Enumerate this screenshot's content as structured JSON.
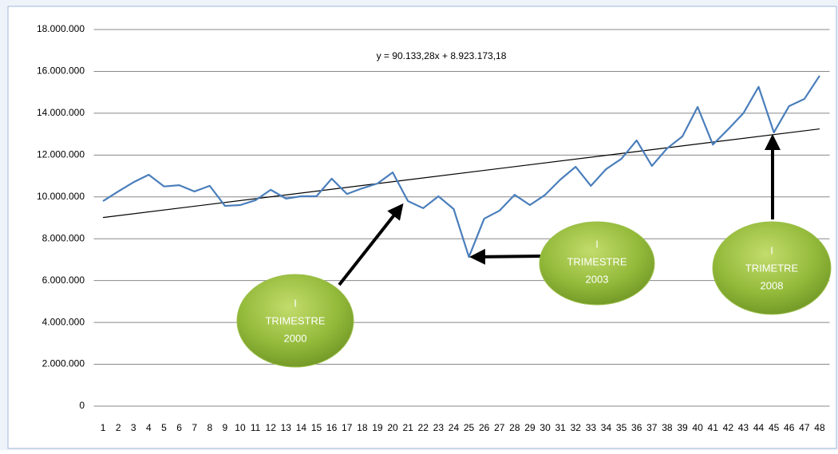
{
  "chart_data": {
    "type": "line",
    "categories": [
      "1",
      "2",
      "3",
      "4",
      "5",
      "6",
      "7",
      "8",
      "9",
      "10",
      "11",
      "12",
      "13",
      "14",
      "15",
      "16",
      "17",
      "18",
      "19",
      "20",
      "21",
      "22",
      "23",
      "24",
      "25",
      "26",
      "27",
      "28",
      "29",
      "30",
      "31",
      "32",
      "33",
      "34",
      "35",
      "36",
      "37",
      "38",
      "39",
      "40",
      "41",
      "42",
      "43",
      "44",
      "45",
      "46",
      "47",
      "48"
    ],
    "series": [
      {
        "color": "#4a7ebb",
        "values": [
          9800000,
          10260000,
          10700000,
          11060000,
          10500000,
          10560000,
          10260000,
          10530000,
          9570000,
          9610000,
          9840000,
          10340000,
          9920000,
          10030000,
          10030000,
          10870000,
          10140000,
          10410000,
          10640000,
          11170000,
          9800000,
          9460000,
          10030000,
          9420000,
          7130000,
          8960000,
          9340000,
          10100000,
          9610000,
          10100000,
          10830000,
          11440000,
          10530000,
          11330000,
          11820000,
          12700000,
          11480000,
          12320000,
          12890000,
          14300000,
          12500000,
          13230000,
          14000000,
          15260000,
          13080000,
          14340000,
          14680000,
          15790000
        ]
      }
    ],
    "trendline": {
      "slope": 90133.28,
      "intercept": 8923173.18,
      "label": "y = 90.133,28x + 8.923.173,18",
      "color": "#000000"
    },
    "ylim": [
      0,
      18000000
    ],
    "yticks": [
      0,
      {
        "value": 2000000,
        "label": "2.000.000"
      },
      {
        "value": 4000000,
        "label": "4.000.000"
      },
      {
        "value": 6000000,
        "label": "6.000.000"
      },
      {
        "value": 8000000,
        "label": "8.000.000"
      },
      {
        "value": 10000000,
        "label": "10.000.000"
      },
      {
        "value": 12000000,
        "label": "12.000.000"
      },
      {
        "value": 14000000,
        "label": "14.000.000"
      },
      {
        "value": 16000000,
        "label": "16.000.000"
      },
      {
        "value": 18000000,
        "label": "18.000.000"
      }
    ],
    "grid": true,
    "annotations": [
      {
        "lines": [
          "I",
          "TRIMESTRE",
          "2000"
        ]
      },
      {
        "lines": [
          "I",
          "TRIMESTRE",
          "2003"
        ]
      },
      {
        "lines": [
          "I",
          "TRIMETRE",
          "2008"
        ]
      }
    ]
  }
}
